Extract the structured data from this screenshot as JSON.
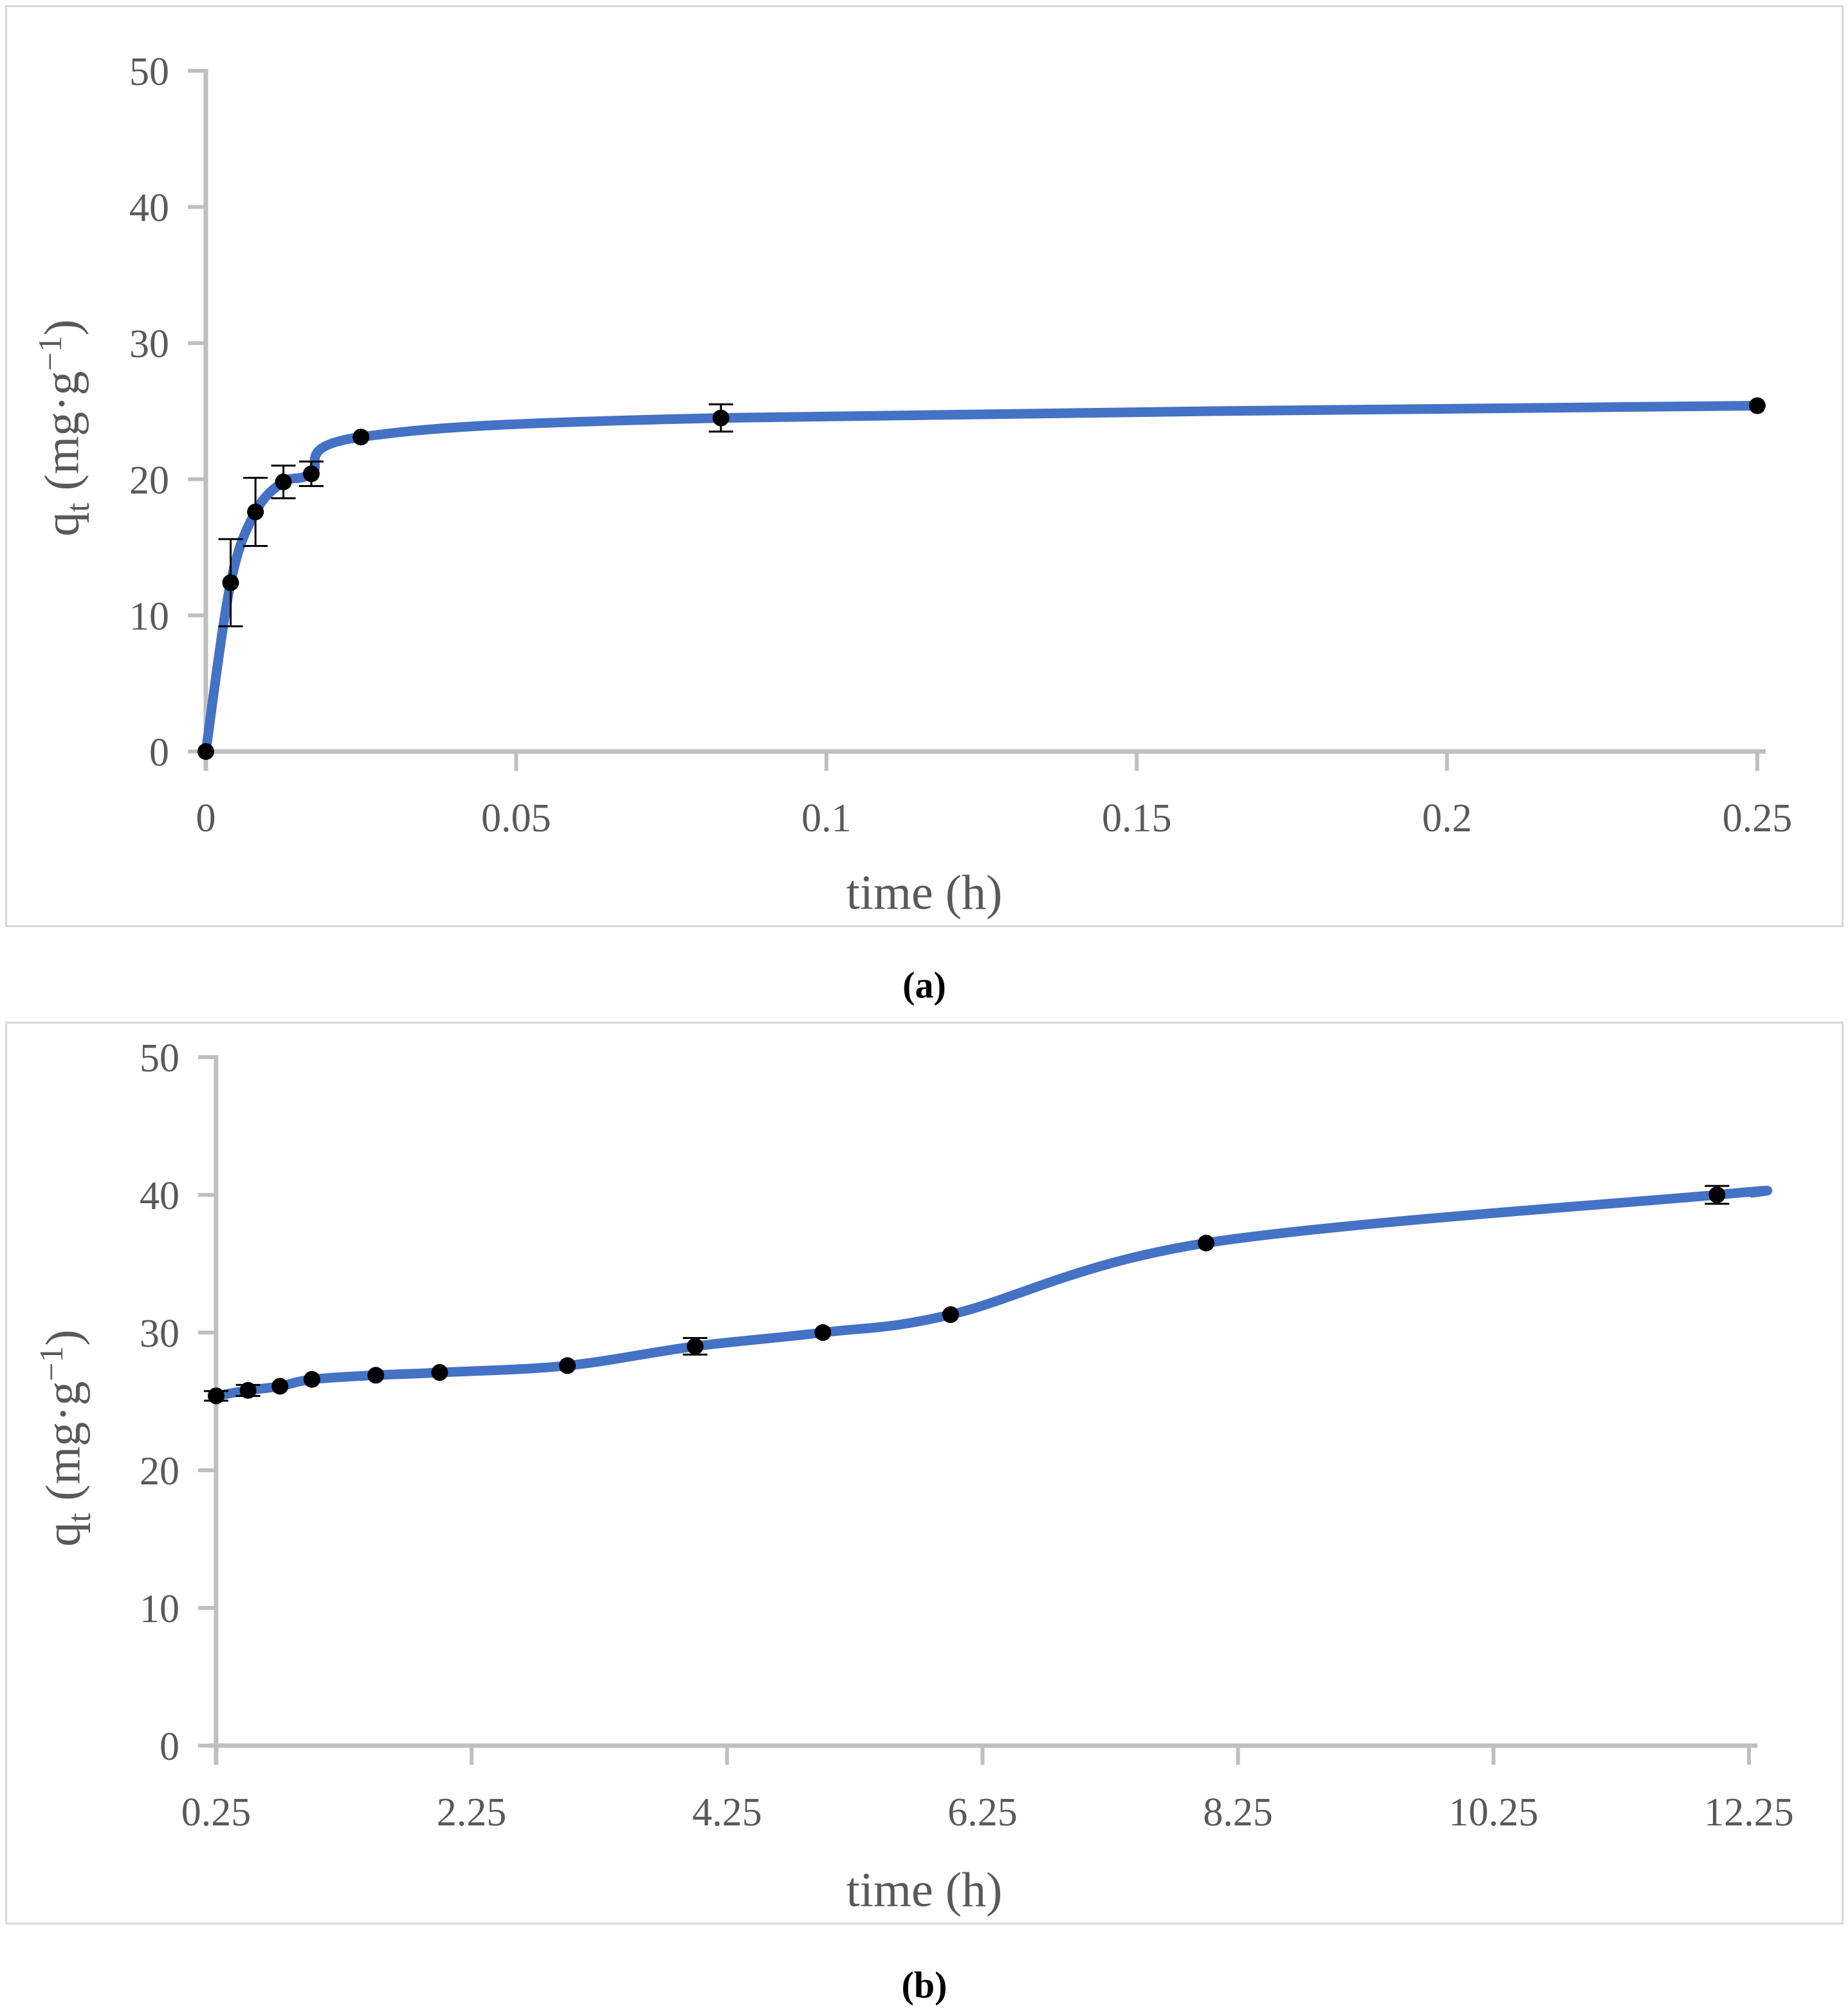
{
  "colors": {
    "background": "#FFFFFF",
    "curve": "#4472C4",
    "marker": "#000000",
    "error_bar": "#000000",
    "axis": "#BFBFBF",
    "tick_text": "#595959",
    "panel_border": "#D9D9D9"
  },
  "chart_data": [
    {
      "id": "a",
      "type": "line",
      "caption": "(a)",
      "xlabel": "time (h)",
      "ylabel_parts": {
        "base": "q",
        "sub": "t",
        "mid": " (mg·g",
        "sup": "−1",
        "end": ")"
      },
      "xlim": [
        0,
        0.25
      ],
      "ylim": [
        0,
        50
      ],
      "grid": false,
      "legend": "none",
      "x_ticks": [
        {
          "v": 0,
          "label": "0"
        },
        {
          "v": 0.05,
          "label": "0.05"
        },
        {
          "v": 0.1,
          "label": "0.1"
        },
        {
          "v": 0.15,
          "label": "0.15"
        },
        {
          "v": 0.2,
          "label": "0.2"
        },
        {
          "v": 0.25,
          "label": "0.25"
        }
      ],
      "y_ticks": [
        {
          "v": 0,
          "label": "0"
        },
        {
          "v": 10,
          "label": "10"
        },
        {
          "v": 20,
          "label": "20"
        },
        {
          "v": 30,
          "label": "30"
        },
        {
          "v": 40,
          "label": "40"
        },
        {
          "v": 50,
          "label": "50"
        }
      ],
      "points": [
        {
          "x": 0,
          "y": 0,
          "err": 0
        },
        {
          "x": 0.004,
          "y": 12.4,
          "err": 3.2
        },
        {
          "x": 0.008,
          "y": 17.6,
          "err": 2.5
        },
        {
          "x": 0.0125,
          "y": 19.8,
          "err": 1.2
        },
        {
          "x": 0.017,
          "y": 20.4,
          "err": 0.9
        },
        {
          "x": 0.025,
          "y": 23.1,
          "err": 0
        },
        {
          "x": 0.083,
          "y": 24.5,
          "err": 1.0
        },
        {
          "x": 0.25,
          "y": 25.4,
          "err": 0
        }
      ]
    },
    {
      "id": "b",
      "type": "line",
      "caption": "(b)",
      "xlabel": "time (h)",
      "ylabel_parts": {
        "base": "q",
        "sub": "t",
        "mid": " (mg·g",
        "sup": "−1",
        "end": ")"
      },
      "xlim": [
        0.25,
        12.25
      ],
      "ylim": [
        0,
        50
      ],
      "grid": false,
      "legend": "none",
      "x_ticks": [
        {
          "v": 0.25,
          "label": "0.25"
        },
        {
          "v": 2.25,
          "label": "2.25"
        },
        {
          "v": 4.25,
          "label": "4.25"
        },
        {
          "v": 6.25,
          "label": "6.25"
        },
        {
          "v": 8.25,
          "label": "8.25"
        },
        {
          "v": 10.25,
          "label": "10.25"
        },
        {
          "v": 12.25,
          "label": "12.25"
        }
      ],
      "y_ticks": [
        {
          "v": 0,
          "label": "0"
        },
        {
          "v": 10,
          "label": "10"
        },
        {
          "v": 20,
          "label": "20"
        },
        {
          "v": 30,
          "label": "30"
        },
        {
          "v": 40,
          "label": "40"
        },
        {
          "v": 50,
          "label": "50"
        }
      ],
      "points": [
        {
          "x": 0.25,
          "y": 25.4,
          "err": 0.35
        },
        {
          "x": 0.5,
          "y": 25.8,
          "err": 0.4
        },
        {
          "x": 0.75,
          "y": 26.1,
          "err": 0
        },
        {
          "x": 1,
          "y": 26.6,
          "err": 0
        },
        {
          "x": 1.5,
          "y": 26.9,
          "err": 0
        },
        {
          "x": 2,
          "y": 27.1,
          "err": 0
        },
        {
          "x": 3,
          "y": 27.6,
          "err": 0
        },
        {
          "x": 4,
          "y": 29.0,
          "err": 0.6
        },
        {
          "x": 5,
          "y": 30.0,
          "err": 0
        },
        {
          "x": 6,
          "y": 31.3,
          "err": 0
        },
        {
          "x": 8,
          "y": 36.5,
          "err": 0
        },
        {
          "x": 12,
          "y": 40.0,
          "err": 0.65
        }
      ]
    }
  ]
}
